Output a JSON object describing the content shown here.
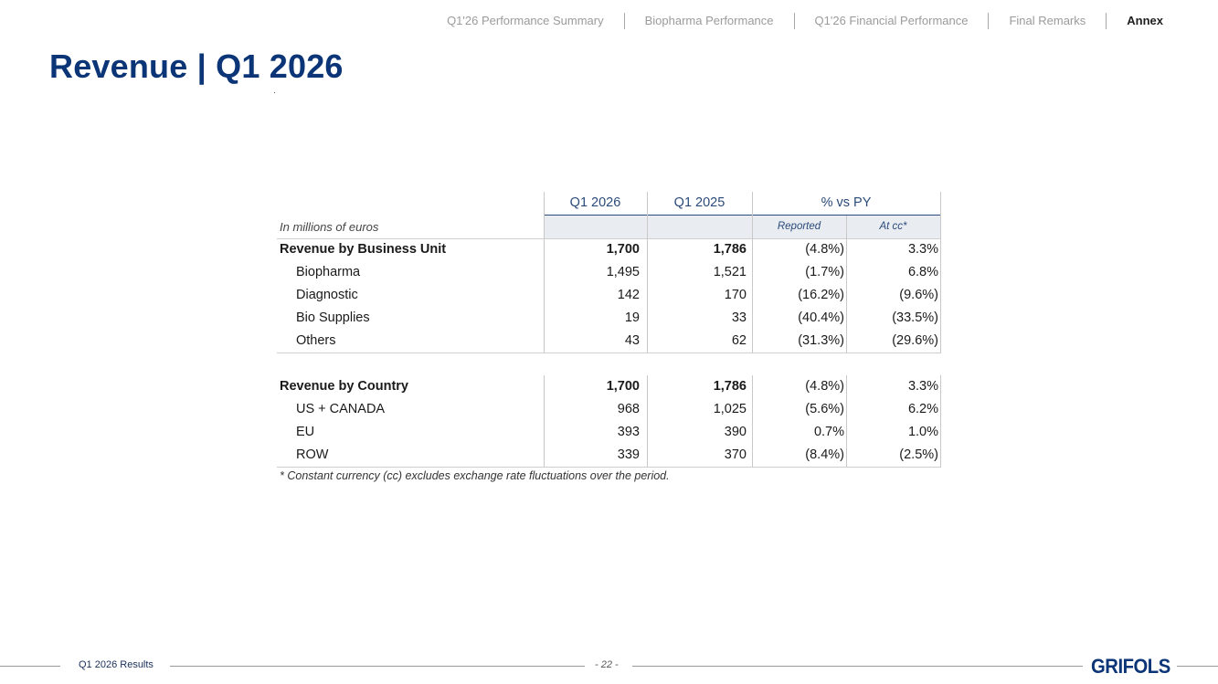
{
  "nav": {
    "items": [
      {
        "label": "Q1'26 Performance Summary",
        "active": false
      },
      {
        "label": "Biopharma Performance",
        "active": false
      },
      {
        "label": "Q1'26 Financial Performance",
        "active": false
      },
      {
        "label": "Final Remarks",
        "active": false
      },
      {
        "label": "Annex",
        "active": true
      }
    ]
  },
  "page": {
    "title": "Revenue | Q1 2026"
  },
  "table": {
    "headers": {
      "q1_2026": "Q1 2026",
      "q1_2025": "Q1 2025",
      "pct_vs_py": "% vs PY",
      "units": "In millions of euros",
      "reported": "Reported",
      "at_cc": "At cc*"
    },
    "business_unit": {
      "total": {
        "label": "Revenue by Business Unit",
        "q1_2026": "1,700",
        "q1_2025": "1,786",
        "reported": "(4.8%)",
        "at_cc": "3.3%"
      },
      "rows": [
        {
          "label": "Biopharma",
          "q1_2026": "1,495",
          "q1_2025": "1,521",
          "reported": "(1.7%)",
          "at_cc": "6.8%"
        },
        {
          "label": "Diagnostic",
          "q1_2026": "142",
          "q1_2025": "170",
          "reported": "(16.2%)",
          "at_cc": "(9.6%)"
        },
        {
          "label": "Bio Supplies",
          "q1_2026": "19",
          "q1_2025": "33",
          "reported": "(40.4%)",
          "at_cc": "(33.5%)"
        },
        {
          "label": "Others",
          "q1_2026": "43",
          "q1_2025": "62",
          "reported": "(31.3%)",
          "at_cc": "(29.6%)"
        }
      ]
    },
    "country": {
      "total": {
        "label": "Revenue by Country",
        "q1_2026": "1,700",
        "q1_2025": "1,786",
        "reported": "(4.8%)",
        "at_cc": "3.3%"
      },
      "rows": [
        {
          "label": "US + CANADA",
          "q1_2026": "968",
          "q1_2025": "1,025",
          "reported": "(5.6%)",
          "at_cc": "6.2%"
        },
        {
          "label": "EU",
          "q1_2026": "393",
          "q1_2025": "390",
          "reported": "0.7%",
          "at_cc": "1.0%"
        },
        {
          "label": "ROW",
          "q1_2026": "339",
          "q1_2025": "370",
          "reported": "(8.4%)",
          "at_cc": "(2.5%)"
        }
      ]
    },
    "footnote": "* Constant currency (cc) excludes exchange rate fluctuations over the period."
  },
  "footer": {
    "left": "Q1 2026 Results",
    "page": "- 22 -",
    "logo": "GRIFOLS"
  },
  "colors": {
    "brand": "#0b3576",
    "header_text": "#2a4a7a",
    "header_bg": "#e9edf2",
    "nav_inactive": "#9b9b9b"
  }
}
